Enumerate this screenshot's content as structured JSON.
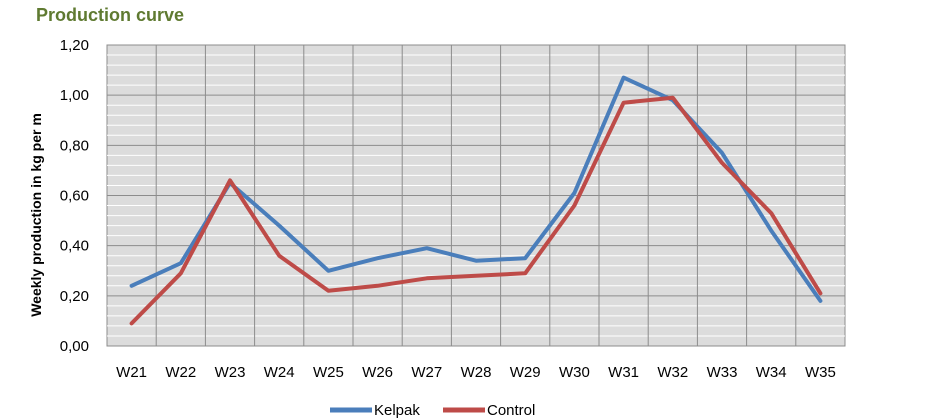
{
  "chart_data": {
    "type": "line",
    "title": "Production curve",
    "xlabel": "",
    "ylabel": "Weekly production in kg per m",
    "categories": [
      "W21",
      "W22",
      "W23",
      "W24",
      "W25",
      "W26",
      "W27",
      "W28",
      "W29",
      "W30",
      "W31",
      "W32",
      "W33",
      "W34",
      "W35"
    ],
    "ylim": [
      0,
      1.2
    ],
    "yticks": [
      "0,00",
      "0,20",
      "0,40",
      "0,60",
      "0,80",
      "1,00",
      "1,20"
    ],
    "ytick_values": [
      0,
      0.2,
      0.4,
      0.6,
      0.8,
      1.0,
      1.2
    ],
    "grid": true,
    "legend_position": "bottom",
    "series": [
      {
        "name": "Kelpak",
        "color": "#4a7ebb",
        "values": [
          0.24,
          0.33,
          0.65,
          0.48,
          0.3,
          0.35,
          0.39,
          0.34,
          0.35,
          0.61,
          1.07,
          0.98,
          0.77,
          0.46,
          0.18
        ]
      },
      {
        "name": "Control",
        "color": "#be4b48",
        "values": [
          0.09,
          0.29,
          0.66,
          0.36,
          0.22,
          0.24,
          0.27,
          0.28,
          0.29,
          0.56,
          0.97,
          0.99,
          0.73,
          0.53,
          0.21
        ]
      }
    ],
    "plot_background": "#dcdcdc"
  }
}
